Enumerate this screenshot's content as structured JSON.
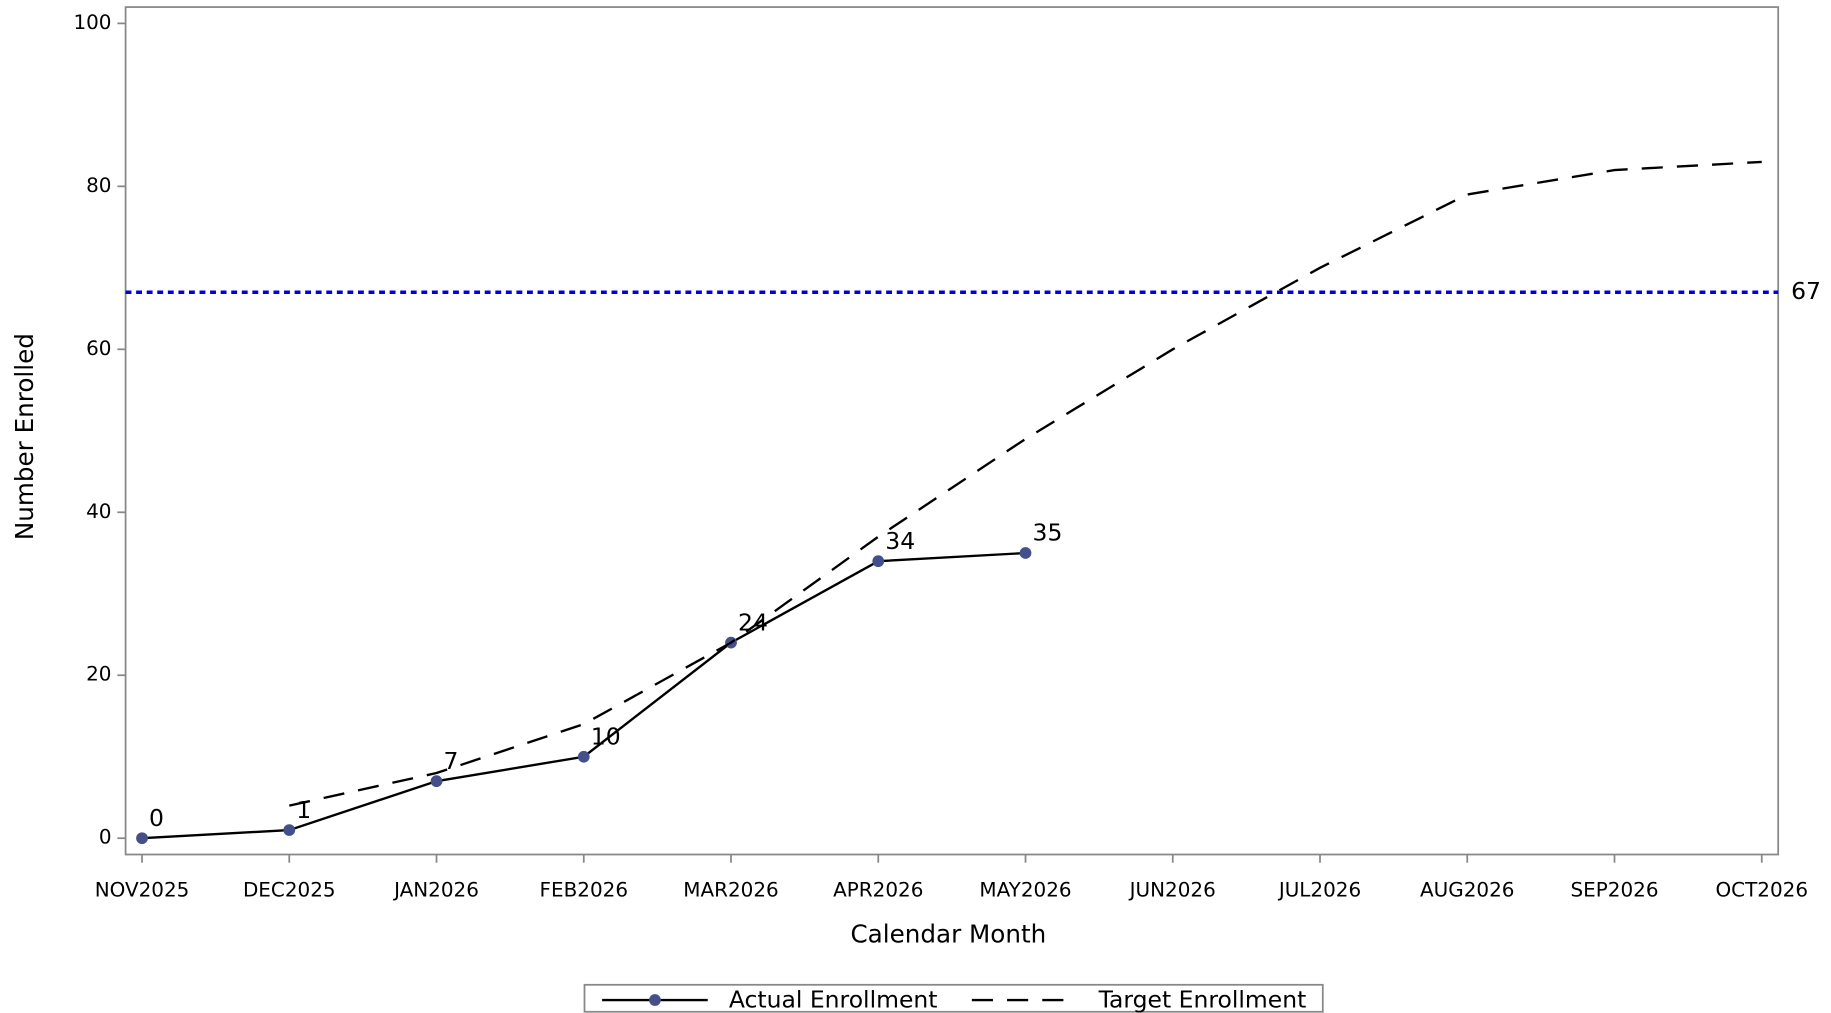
{
  "chart_data": {
    "type": "line",
    "x_label": "Calendar Month",
    "y_label": "Number Enrolled",
    "categories": [
      "NOV2025",
      "DEC2025",
      "JAN2026",
      "FEB2026",
      "MAR2026",
      "APR2026",
      "MAY2026",
      "JUN2026",
      "JUL2026",
      "AUG2026",
      "SEP2026",
      "OCT2026"
    ],
    "series": [
      {
        "name": "Actual Enrollment",
        "color": "#000000",
        "marker_color": "#44508a",
        "dash": "solid",
        "markers": true,
        "data_labels": true,
        "values": [
          0,
          1,
          7,
          10,
          24,
          34,
          35,
          null,
          null,
          null,
          null,
          null
        ]
      },
      {
        "name": "Target Enrollment",
        "color": "#000000",
        "dash": "dashed",
        "markers": false,
        "data_labels": false,
        "values": [
          null,
          4,
          8,
          14,
          24,
          37,
          49,
          60,
          70,
          79,
          82,
          83
        ]
      }
    ],
    "reference_lines": [
      {
        "value": 67,
        "color": "#0000dd",
        "dash": "dotted"
      }
    ],
    "ylim": [
      -2,
      102
    ],
    "yticks": [
      0,
      20,
      40,
      60,
      80,
      100
    ],
    "grid": false,
    "legend": "bottom"
  }
}
